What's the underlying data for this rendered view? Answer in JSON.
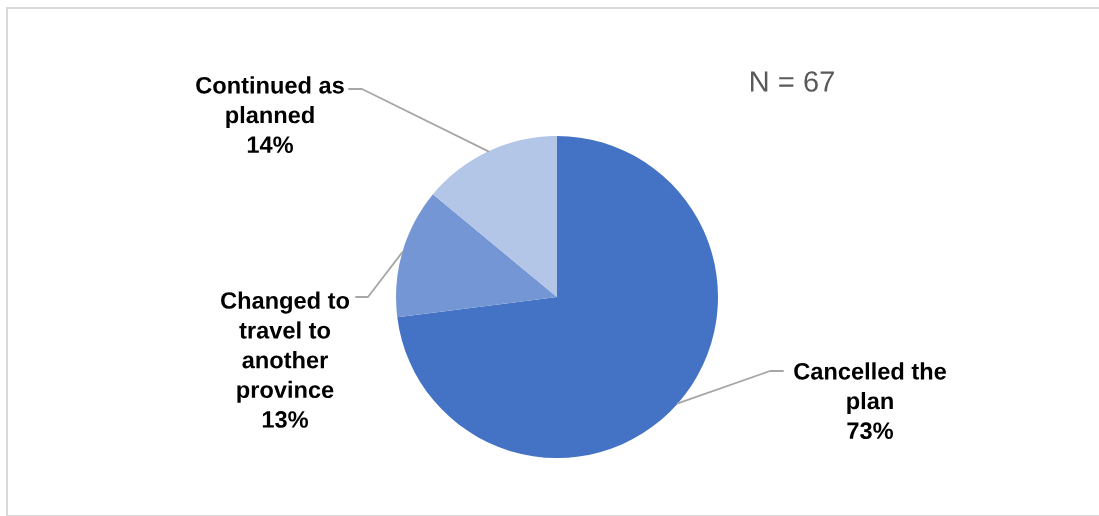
{
  "chart_data": {
    "type": "pie",
    "categories": [
      "Cancelled the plan",
      "Changed to travel to another province",
      "Continued as planned"
    ],
    "values": [
      73,
      13,
      14
    ],
    "colors": [
      "#4472c4",
      "#7496d4",
      "#b4c6e7"
    ],
    "value_labels": [
      "73%",
      "13%",
      "14%"
    ],
    "annotations": [
      "N = 67"
    ]
  }
}
